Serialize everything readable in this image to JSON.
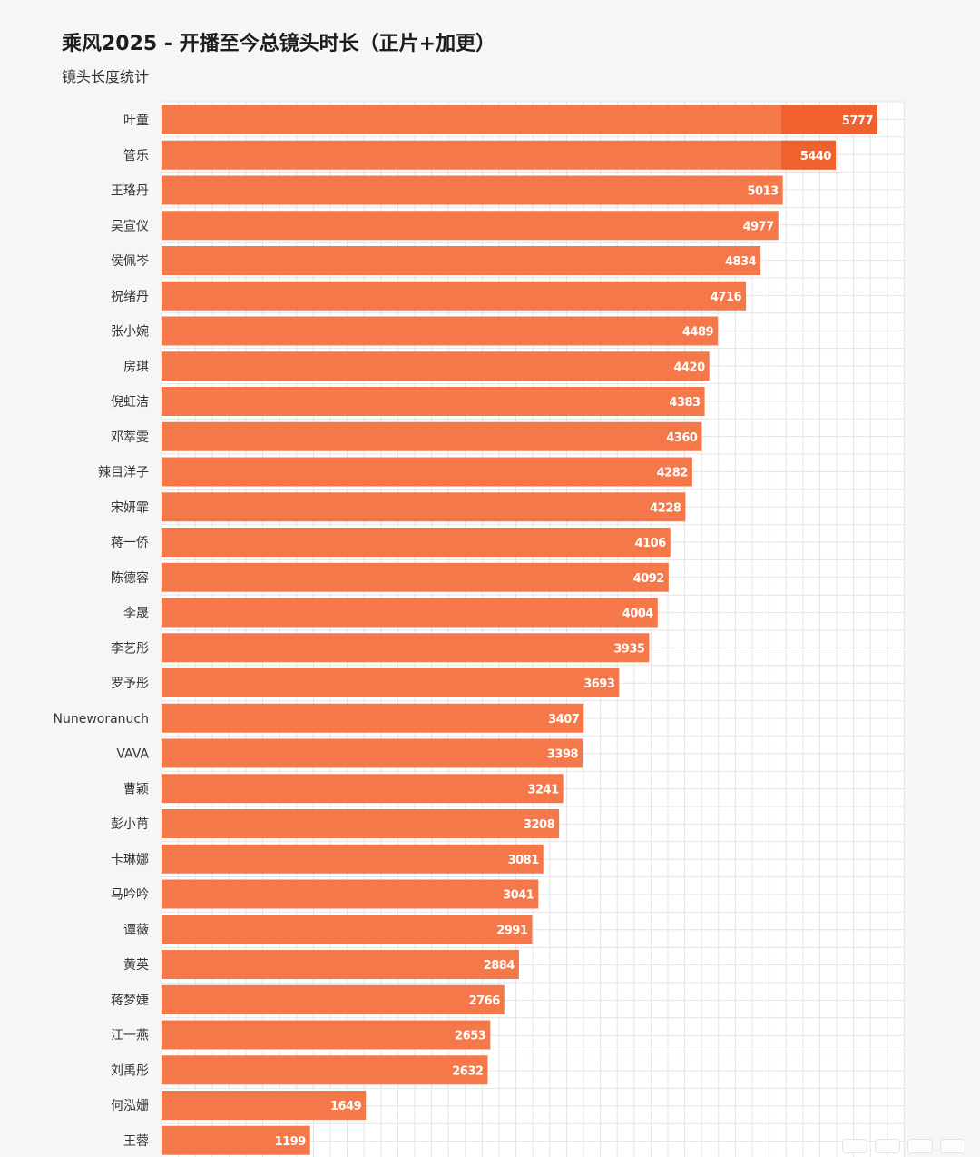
{
  "header": {
    "title": "乘风2025 - 开播至今总镜头时长（正片+加更）",
    "subtitle": "镜头长度统计"
  },
  "colors": {
    "bar": "#f4784a",
    "bar_top_highlight": "#f0612e",
    "grid": "#e4e4e4",
    "background": "#f6f6f6"
  },
  "chart_data": {
    "type": "bar",
    "orientation": "horizontal",
    "title": "乘风2025 - 开播至今总镜头时长（正片+加更）",
    "subtitle": "镜头长度统计",
    "xlabel": "",
    "ylabel": "",
    "grid": true,
    "categories": [
      "叶童",
      "管乐",
      "王珞丹",
      "吴宣仪",
      "侯佩岑",
      "祝绪丹",
      "张小婉",
      "房琪",
      "倪虹洁",
      "邓萃雯",
      "辣目洋子",
      "宋妍霏",
      "蒋一侨",
      "陈德容",
      "李晟",
      "李艺彤",
      "罗予彤",
      "Nuneworanuch",
      "VAVA",
      "曹颖",
      "彭小苒",
      "卡琳娜",
      "马吟吟",
      "谭薇",
      "黄英",
      "蒋梦婕",
      "江一燕",
      "刘禹彤",
      "何泓姗",
      "王蓉"
    ],
    "values": [
      5777,
      5440,
      5013,
      4977,
      4834,
      4716,
      4489,
      4420,
      4383,
      4360,
      4282,
      4228,
      4106,
      4092,
      4004,
      3935,
      3693,
      3407,
      3398,
      3241,
      3208,
      3081,
      3041,
      2991,
      2884,
      2766,
      2653,
      2632,
      1649,
      1199
    ],
    "xlim": [
      0,
      6000
    ]
  }
}
